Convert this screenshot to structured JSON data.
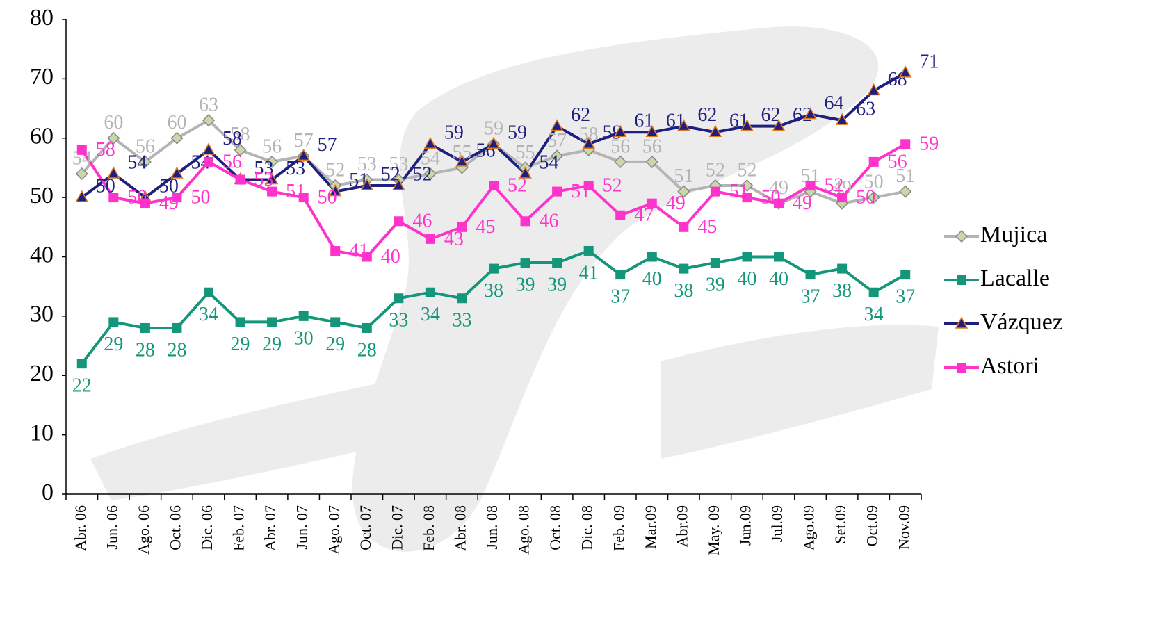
{
  "chart_data": {
    "type": "line",
    "categories": [
      "Abr. 06",
      "Jun. 06",
      "Ago. 06",
      "Oct. 06",
      "Dic. 06",
      "Feb. 07",
      "Abr. 07",
      "Jun. 07",
      "Ago. 07",
      "Oct. 07",
      "Dic. 07",
      "Feb. 08",
      "Abr. 08",
      "Jun. 08",
      "Ago. 08",
      "Oct. 08",
      "Dic. 08",
      "Feb. 09",
      "Mar.09",
      "Abr.09",
      "May. 09",
      "Jun.09",
      "Jul.09",
      "Ago.09",
      "Set.09",
      "Oct.09",
      "Nov.09"
    ],
    "series": [
      {
        "name": "Mujica",
        "color": "#b4b4b4",
        "marker": "diamond",
        "values": [
          54,
          60,
          56,
          60,
          63,
          58,
          56,
          57,
          52,
          53,
          53,
          54,
          55,
          59,
          55,
          57,
          58,
          56,
          56,
          51,
          52,
          52,
          49,
          51,
          49,
          50,
          51
        ]
      },
      {
        "name": "Lacalle",
        "color": "#13967a",
        "marker": "square",
        "values": [
          22,
          29,
          28,
          28,
          34,
          29,
          29,
          30,
          29,
          28,
          33,
          34,
          33,
          38,
          39,
          39,
          41,
          37,
          40,
          38,
          39,
          40,
          40,
          37,
          38,
          34,
          37
        ]
      },
      {
        "name": "Vázquez",
        "color": "#1f1f80",
        "marker": "triangle",
        "values": [
          50,
          54,
          50,
          54,
          58,
          53,
          53,
          57,
          51,
          52,
          52,
          59,
          56,
          59,
          54,
          62,
          59,
          61,
          61,
          62,
          61,
          62,
          62,
          64,
          63,
          68,
          71
        ]
      },
      {
        "name": "Astori",
        "color": "#ff33cc",
        "marker": "square",
        "values": [
          58,
          50,
          49,
          50,
          56,
          53,
          51,
          50,
          41,
          40,
          46,
          43,
          45,
          52,
          46,
          51,
          52,
          47,
          49,
          45,
          51,
          50,
          49,
          52,
          50,
          56,
          59
        ]
      }
    ],
    "ylim": [
      0,
      80
    ],
    "yticks": [
      0,
      10,
      20,
      30,
      40,
      50,
      60,
      70,
      80
    ],
    "legend": "right"
  }
}
